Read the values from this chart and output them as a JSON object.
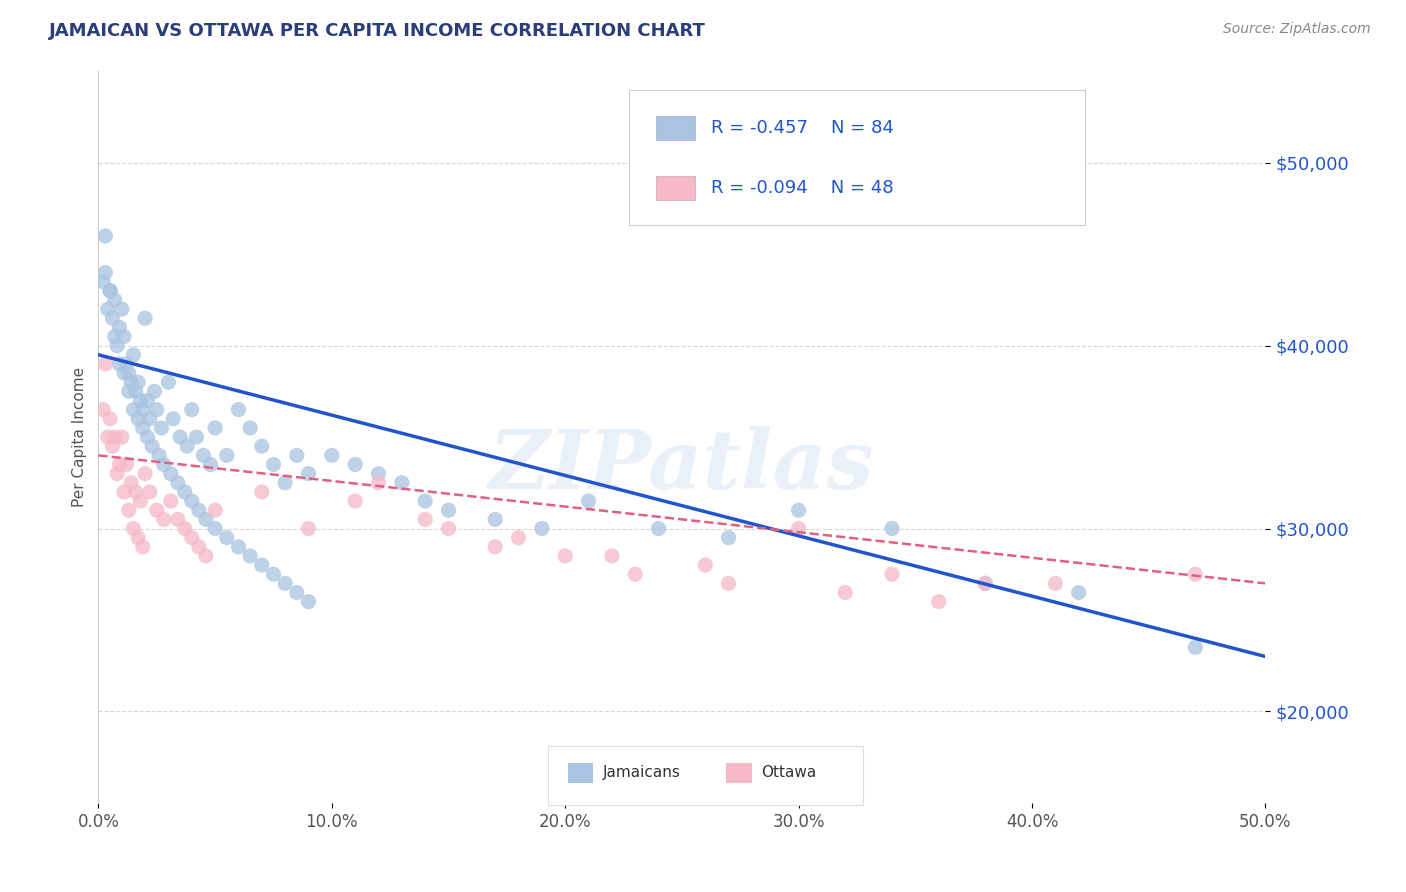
{
  "title": "JAMAICAN VS OTTAWA PER CAPITA INCOME CORRELATION CHART",
  "source": "Source: ZipAtlas.com",
  "ylabel": "Per Capita Income",
  "xlim": [
    0.0,
    0.5
  ],
  "ylim": [
    15000,
    55000
  ],
  "yticks": [
    20000,
    30000,
    40000,
    50000
  ],
  "ytick_labels": [
    "$20,000",
    "$30,000",
    "$40,000",
    "$50,000"
  ],
  "xticks": [
    0.0,
    0.1,
    0.2,
    0.3,
    0.4,
    0.5
  ],
  "xtick_labels": [
    "0.0%",
    "10.0%",
    "20.0%",
    "30.0%",
    "40.0%",
    "50.0%"
  ],
  "jamaicans_color": "#a8c4e0",
  "ottawa_color": "#f5b8c8",
  "trend_blue_color": "#2255cc",
  "trend_pink_color": "#e06080",
  "watermark": "ZIPatlas",
  "legend_label1": "Jamaicans",
  "legend_label2": "Ottawa",
  "legend_text_color": "#2255cc",
  "jamaicans_x": [
    0.002,
    0.003,
    0.004,
    0.005,
    0.006,
    0.007,
    0.008,
    0.009,
    0.01,
    0.011,
    0.012,
    0.013,
    0.014,
    0.015,
    0.016,
    0.017,
    0.018,
    0.019,
    0.02,
    0.021,
    0.022,
    0.024,
    0.025,
    0.027,
    0.03,
    0.032,
    0.035,
    0.038,
    0.04,
    0.042,
    0.045,
    0.048,
    0.05,
    0.055,
    0.06,
    0.065,
    0.07,
    0.075,
    0.08,
    0.085,
    0.09,
    0.1,
    0.11,
    0.12,
    0.13,
    0.14,
    0.15,
    0.17,
    0.19,
    0.21,
    0.24,
    0.27,
    0.3,
    0.34,
    0.38,
    0.42,
    0.47,
    0.003,
    0.005,
    0.007,
    0.009,
    0.011,
    0.013,
    0.015,
    0.017,
    0.019,
    0.021,
    0.023,
    0.026,
    0.028,
    0.031,
    0.034,
    0.037,
    0.04,
    0.043,
    0.046,
    0.05,
    0.055,
    0.06,
    0.065,
    0.07,
    0.075,
    0.08,
    0.085,
    0.09
  ],
  "jamaicans_y": [
    43500,
    44000,
    42000,
    43000,
    41500,
    42500,
    40000,
    41000,
    42000,
    40500,
    39000,
    38500,
    38000,
    39500,
    37500,
    38000,
    37000,
    36500,
    41500,
    37000,
    36000,
    37500,
    36500,
    35500,
    38000,
    36000,
    35000,
    34500,
    36500,
    35000,
    34000,
    33500,
    35500,
    34000,
    36500,
    35500,
    34500,
    33500,
    32500,
    34000,
    33000,
    34000,
    33500,
    33000,
    32500,
    31500,
    31000,
    30500,
    30000,
    31500,
    30000,
    29500,
    31000,
    30000,
    27000,
    26500,
    23500,
    46000,
    43000,
    40500,
    39000,
    38500,
    37500,
    36500,
    36000,
    35500,
    35000,
    34500,
    34000,
    33500,
    33000,
    32500,
    32000,
    31500,
    31000,
    30500,
    30000,
    29500,
    29000,
    28500,
    28000,
    27500,
    27000,
    26500,
    26000
  ],
  "ottawa_x": [
    0.002,
    0.004,
    0.006,
    0.008,
    0.01,
    0.012,
    0.014,
    0.016,
    0.018,
    0.02,
    0.022,
    0.025,
    0.028,
    0.031,
    0.034,
    0.037,
    0.04,
    0.043,
    0.046,
    0.003,
    0.005,
    0.007,
    0.009,
    0.011,
    0.013,
    0.015,
    0.017,
    0.019,
    0.05,
    0.07,
    0.09,
    0.12,
    0.15,
    0.18,
    0.22,
    0.26,
    0.3,
    0.34,
    0.38,
    0.11,
    0.14,
    0.17,
    0.2,
    0.23,
    0.27,
    0.32,
    0.36,
    0.41,
    0.47
  ],
  "ottawa_y": [
    36500,
    35000,
    34500,
    33000,
    35000,
    33500,
    32500,
    32000,
    31500,
    33000,
    32000,
    31000,
    30500,
    31500,
    30500,
    30000,
    29500,
    29000,
    28500,
    39000,
    36000,
    35000,
    33500,
    32000,
    31000,
    30000,
    29500,
    29000,
    31000,
    32000,
    30000,
    32500,
    30000,
    29500,
    28500,
    28000,
    30000,
    27500,
    27000,
    31500,
    30500,
    29000,
    28500,
    27500,
    27000,
    26500,
    26000,
    27000,
    27500
  ]
}
